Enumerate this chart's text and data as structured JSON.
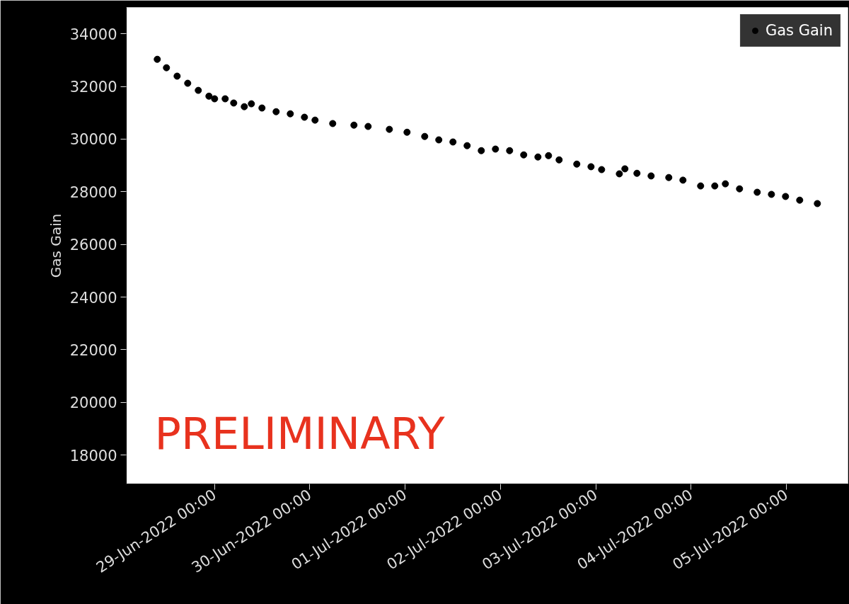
{
  "chart_data": {
    "type": "scatter",
    "ylabel": "Gas Gain",
    "marker": "circle",
    "legend": "top right",
    "grid": false,
    "annotations": [
      "PRELIMINARY"
    ],
    "xlim": [
      "2022-06-28T01:46",
      "2022-07-05T15:30"
    ],
    "ylim": [
      16900,
      35000
    ],
    "yticks": [
      18000,
      20000,
      22000,
      24000,
      26000,
      28000,
      30000,
      32000,
      34000
    ],
    "xticks": [
      {
        "value": "2022-06-29T00:00",
        "label": "29-Jun-2022 00:00"
      },
      {
        "value": "2022-06-30T00:00",
        "label": "30-Jun-2022 00:00"
      },
      {
        "value": "2022-07-01T00:00",
        "label": "01-Jul-2022 00:00"
      },
      {
        "value": "2022-07-02T00:00",
        "label": "02-Jul-2022 00:00"
      },
      {
        "value": "2022-07-03T00:00",
        "label": "03-Jul-2022 00:00"
      },
      {
        "value": "2022-07-04T00:00",
        "label": "04-Jul-2022 00:00"
      },
      {
        "value": "2022-07-05T00:00",
        "label": "05-Jul-2022 00:00"
      }
    ],
    "x": [
      "2022-06-28T09:34",
      "2022-06-28T11:53",
      "2022-06-28T14:34",
      "2022-06-28T17:14",
      "2022-06-28T19:54",
      "2022-06-28T22:35",
      "2022-06-29T00:00",
      "2022-06-29T02:40",
      "2022-06-29T04:49",
      "2022-06-29T07:29",
      "2022-06-29T09:16",
      "2022-06-29T11:56",
      "2022-06-29T15:30",
      "2022-06-29T19:04",
      "2022-06-29T22:38",
      "2022-06-30T01:18",
      "2022-06-30T05:45",
      "2022-06-30T11:06",
      "2022-06-30T14:40",
      "2022-06-30T20:01",
      "2022-07-01T00:28",
      "2022-07-01T04:55",
      "2022-07-01T08:28",
      "2022-07-01T12:02",
      "2022-07-01T15:36",
      "2022-07-01T19:10",
      "2022-07-01T22:44",
      "2022-07-02T02:18",
      "2022-07-02T05:51",
      "2022-07-02T09:26",
      "2022-07-02T12:06",
      "2022-07-02T14:46",
      "2022-07-02T19:13",
      "2022-07-02T22:48",
      "2022-07-03T01:28",
      "2022-07-03T05:56",
      "2022-07-03T07:20",
      "2022-07-03T10:22",
      "2022-07-03T13:56",
      "2022-07-03T18:23",
      "2022-07-03T21:57",
      "2022-07-04T02:24",
      "2022-07-04T05:58",
      "2022-07-04T08:38",
      "2022-07-04T12:12",
      "2022-07-04T16:39",
      "2022-07-04T20:14",
      "2022-07-04T23:47",
      "2022-07-05T03:21",
      "2022-07-05T07:48"
    ],
    "series": [
      {
        "name": "Gas Gain",
        "color": "#000000",
        "values": [
          33030,
          32710,
          32390,
          32120,
          31850,
          31630,
          31530,
          31530,
          31370,
          31230,
          31340,
          31180,
          31040,
          30960,
          30830,
          30720,
          30590,
          30530,
          30480,
          30370,
          30260,
          30100,
          29970,
          29890,
          29750,
          29560,
          29620,
          29560,
          29400,
          29320,
          29370,
          29210,
          29050,
          28950,
          28840,
          28680,
          28870,
          28700,
          28600,
          28540,
          28440,
          28220,
          28220,
          28300,
          28110,
          27980,
          27900,
          27820,
          27680,
          27550
        ]
      }
    ]
  }
}
